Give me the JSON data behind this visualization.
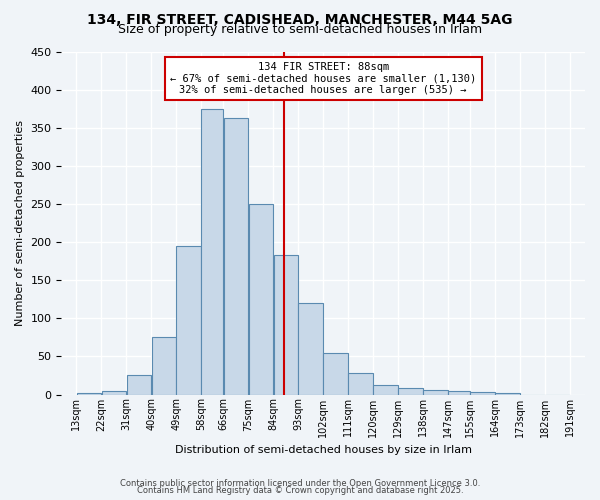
{
  "title_line1": "134, FIR STREET, CADISHEAD, MANCHESTER, M44 5AG",
  "title_line2": "Size of property relative to semi-detached houses in Irlam",
  "xlabel": "Distribution of semi-detached houses by size in Irlam",
  "ylabel": "Number of semi-detached properties",
  "bin_labels": [
    "13sqm",
    "22sqm",
    "31sqm",
    "40sqm",
    "49sqm",
    "58sqm",
    "66sqm",
    "75sqm",
    "84sqm",
    "93sqm",
    "102sqm",
    "111sqm",
    "120sqm",
    "129sqm",
    "138sqm",
    "147sqm",
    "155sqm",
    "164sqm",
    "173sqm",
    "182sqm",
    "191sqm"
  ],
  "bin_edges": [
    13,
    22,
    31,
    40,
    49,
    58,
    66,
    75,
    84,
    93,
    102,
    111,
    120,
    129,
    138,
    147,
    155,
    164,
    173,
    182,
    191
  ],
  "bar_heights": [
    2,
    4,
    25,
    75,
    195,
    375,
    363,
    250,
    183,
    120,
    55,
    28,
    13,
    9,
    6,
    5,
    3,
    2,
    0,
    0
  ],
  "bar_color": "#c8d8e8",
  "bar_edgecolor": "#5a8ab0",
  "property_size": 88,
  "vline_color": "#cc0000",
  "annotation_title": "134 FIR STREET: 88sqm",
  "annotation_line1": "← 67% of semi-detached houses are smaller (1,130)",
  "annotation_line2": "32% of semi-detached houses are larger (535) →",
  "annotation_box_edgecolor": "#cc0000",
  "annotation_box_facecolor": "#ffffff",
  "ylim": [
    0,
    450
  ],
  "yticks": [
    0,
    50,
    100,
    150,
    200,
    250,
    300,
    350,
    400,
    450
  ],
  "footer_line1": "Contains HM Land Registry data © Crown copyright and database right 2025.",
  "footer_line2": "Contains public sector information licensed under the Open Government Licence 3.0.",
  "bg_color": "#f0f4f8",
  "grid_color": "#ffffff"
}
